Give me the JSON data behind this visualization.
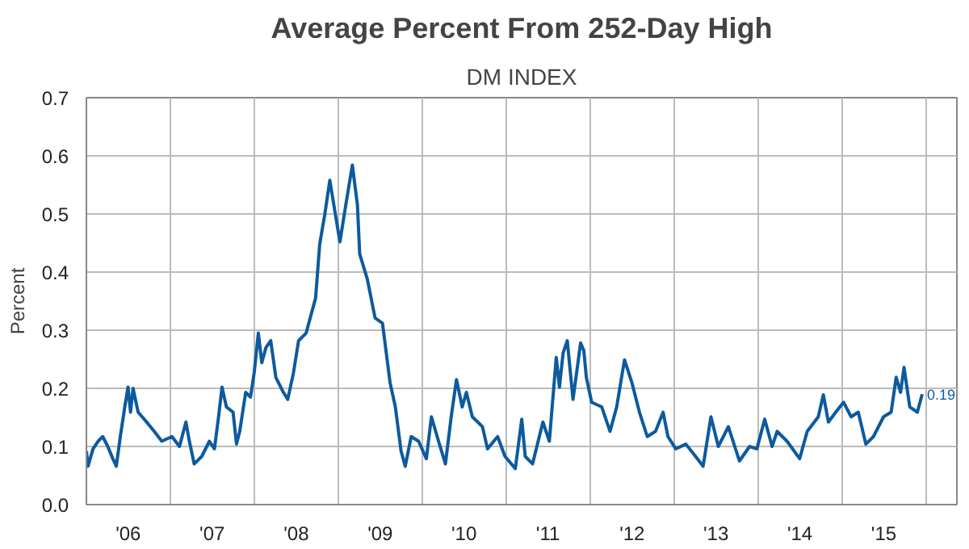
{
  "chart_data": {
    "type": "line",
    "title": "Average Percent From 252-Day High",
    "subtitle": "DM INDEX",
    "ylabel": "Percent",
    "x": [
      "2006-01-01",
      "2006-01-08",
      "2006-01-30",
      "2006-02-21",
      "2006-03-13",
      "2006-04-04",
      "2006-04-26",
      "2006-05-11",
      "2006-05-30",
      "2006-06-17",
      "2006-07-01",
      "2006-07-12",
      "2006-07-23",
      "2006-08-14",
      "2006-09-20",
      "2006-10-23",
      "2006-11-25",
      "2007-01-08",
      "2007-02-10",
      "2007-03-10",
      "2007-03-25",
      "2007-04-15",
      "2007-05-18",
      "2007-06-20",
      "2007-07-12",
      "2007-07-30",
      "2007-08-14",
      "2007-09-02",
      "2007-10-01",
      "2007-10-16",
      "2007-10-30",
      "2007-11-25",
      "2007-12-16",
      "2008-01-01",
      "2008-01-19",
      "2008-02-03",
      "2008-02-21",
      "2008-03-13",
      "2008-04-04",
      "2008-05-07",
      "2008-05-26",
      "2008-06-20",
      "2008-07-12",
      "2008-08-14",
      "2008-09-06",
      "2008-09-24",
      "2008-10-12",
      "2008-11-03",
      "2008-11-25",
      "2008-12-16",
      "2009-01-08",
      "2009-01-30",
      "2009-03-03",
      "2009-03-25",
      "2009-04-04",
      "2009-05-07",
      "2009-06-10",
      "2009-07-12",
      "2009-08-14",
      "2009-09-06",
      "2009-10-01",
      "2009-10-19",
      "2009-11-14",
      "2009-12-16",
      "2010-01-19",
      "2010-02-10",
      "2010-03-13",
      "2010-04-12",
      "2010-05-07",
      "2010-05-30",
      "2010-06-24",
      "2010-07-12",
      "2010-08-07",
      "2010-09-20",
      "2010-10-12",
      "2010-11-25",
      "2010-12-27",
      "2011-02-10",
      "2011-03-10",
      "2011-03-25",
      "2011-04-26",
      "2011-06-10",
      "2011-07-08",
      "2011-08-07",
      "2011-08-21",
      "2011-09-06",
      "2011-09-24",
      "2011-10-19",
      "2011-11-21",
      "2011-12-05",
      "2011-12-16",
      "2012-01-08",
      "2012-02-21",
      "2012-03-28",
      "2012-04-26",
      "2012-05-30",
      "2012-07-01",
      "2012-08-03",
      "2012-09-06",
      "2012-10-12",
      "2012-11-14",
      "2012-12-05",
      "2013-01-08",
      "2013-02-21",
      "2013-04-04",
      "2013-05-07",
      "2013-06-10",
      "2013-07-12",
      "2013-08-25",
      "2013-10-12",
      "2013-11-25",
      "2013-12-27",
      "2014-01-30",
      "2014-03-03",
      "2014-03-25",
      "2014-05-07",
      "2014-07-01",
      "2014-08-03",
      "2014-09-20",
      "2014-10-12",
      "2014-11-03",
      "2014-12-05",
      "2015-01-08",
      "2015-02-10",
      "2015-03-13",
      "2015-04-15",
      "2015-05-18",
      "2015-07-01",
      "2015-08-03",
      "2015-08-25",
      "2015-09-13",
      "2015-09-28",
      "2015-10-23",
      "2015-11-25",
      "2015-12-16"
    ],
    "series": [
      {
        "color": "#0d5a9e",
        "values": [
          0.092,
          0.066,
          0.096,
          0.109,
          0.117,
          0.1,
          0.079,
          0.066,
          0.121,
          0.168,
          0.202,
          0.159,
          0.2,
          0.159,
          0.142,
          0.126,
          0.109,
          0.117,
          0.1,
          0.142,
          0.109,
          0.07,
          0.083,
          0.109,
          0.096,
          0.151,
          0.202,
          0.168,
          0.159,
          0.104,
          0.126,
          0.193,
          0.185,
          0.227,
          0.295,
          0.244,
          0.27,
          0.282,
          0.219,
          0.193,
          0.181,
          0.227,
          0.282,
          0.295,
          0.329,
          0.355,
          0.448,
          0.499,
          0.558,
          0.507,
          0.452,
          0.507,
          0.584,
          0.516,
          0.431,
          0.388,
          0.321,
          0.312,
          0.21,
          0.168,
          0.092,
          0.066,
          0.117,
          0.109,
          0.079,
          0.151,
          0.109,
          0.07,
          0.151,
          0.215,
          0.168,
          0.193,
          0.151,
          0.134,
          0.096,
          0.117,
          0.083,
          0.062,
          0.147,
          0.083,
          0.07,
          0.142,
          0.109,
          0.253,
          0.202,
          0.261,
          0.282,
          0.181,
          0.278,
          0.265,
          0.219,
          0.176,
          0.168,
          0.126,
          0.168,
          0.249,
          0.21,
          0.159,
          0.117,
          0.126,
          0.159,
          0.117,
          0.096,
          0.104,
          0.083,
          0.066,
          0.151,
          0.1,
          0.134,
          0.075,
          0.1,
          0.096,
          0.147,
          0.1,
          0.126,
          0.109,
          0.079,
          0.126,
          0.151,
          0.189,
          0.142,
          0.159,
          0.176,
          0.151,
          0.159,
          0.104,
          0.117,
          0.151,
          0.159,
          0.219,
          0.193,
          0.236,
          0.168,
          0.159,
          0.19
        ]
      }
    ],
    "xlim": [
      "2006-01-01",
      "2016-05-15"
    ],
    "xticks": [
      {
        "value": "2006-01-01",
        "label": null
      },
      {
        "value": "2006-07-02",
        "label": "'06"
      },
      {
        "value": "2007-01-01",
        "label": null
      },
      {
        "value": "2007-07-02",
        "label": "'07"
      },
      {
        "value": "2008-01-01",
        "label": null
      },
      {
        "value": "2008-07-02",
        "label": "'08"
      },
      {
        "value": "2009-01-01",
        "label": null
      },
      {
        "value": "2009-07-02",
        "label": "'09"
      },
      {
        "value": "2010-01-01",
        "label": null
      },
      {
        "value": "2010-07-02",
        "label": "'10"
      },
      {
        "value": "2011-01-01",
        "label": null
      },
      {
        "value": "2011-07-02",
        "label": "'11"
      },
      {
        "value": "2012-01-01",
        "label": null
      },
      {
        "value": "2012-07-02",
        "label": "'12"
      },
      {
        "value": "2013-01-01",
        "label": null
      },
      {
        "value": "2013-07-02",
        "label": "'13"
      },
      {
        "value": "2014-01-01",
        "label": null
      },
      {
        "value": "2014-07-02",
        "label": "'14"
      },
      {
        "value": "2015-01-01",
        "label": null
      },
      {
        "value": "2015-07-02",
        "label": "'15"
      },
      {
        "value": "2016-01-01",
        "label": null
      }
    ],
    "ylim": [
      0,
      0.7
    ],
    "yticks": [
      {
        "value": 0,
        "label": "0.0"
      },
      0.1,
      0.2,
      0.3,
      0.4,
      0.5,
      0.6,
      0.7
    ],
    "annotations": [
      {
        "text": "0.19",
        "x": "2015-12-16",
        "y": 0.19
      }
    ],
    "grid": true
  }
}
